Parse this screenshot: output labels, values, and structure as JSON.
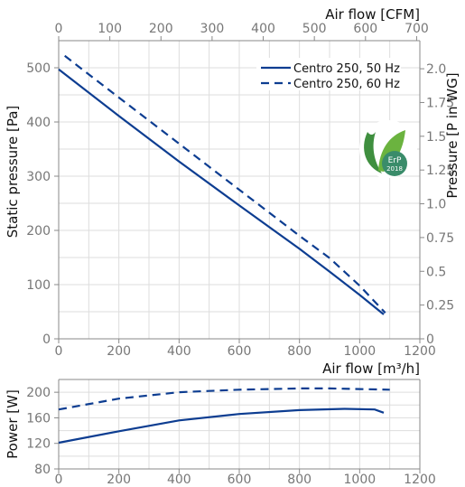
{
  "chart_data": [
    {
      "type": "line",
      "ylabel": "Static pressure [Pa]",
      "ylabel_right": "Pressure [P in WG]",
      "xlabel_top": "Air flow [CFM]",
      "x_ticks": [
        0,
        200,
        400,
        600,
        800,
        1000,
        1200
      ],
      "x_top_ticks": [
        0,
        100,
        200,
        300,
        400,
        500,
        600,
        700
      ],
      "y_ticks": [
        0,
        100,
        200,
        300,
        400,
        500
      ],
      "y_right_ticks": [
        0,
        0.25,
        0.5,
        0.75,
        1.0,
        1.25,
        1.5,
        1.75,
        2.0
      ],
      "y_right_tick_labels": [
        "0",
        "0.25",
        "0.5",
        "0.75",
        "1.0",
        "1.25",
        "1.5",
        "1.75",
        "2.0"
      ],
      "xlim": [
        0,
        1200
      ],
      "ylim": [
        0,
        550
      ],
      "legend_position": "top-right",
      "badge": {
        "line1": "ErP",
        "line2": "2018"
      },
      "series": [
        {
          "name": "Centro 250, 50 Hz",
          "style": "solid",
          "color": "#0d3d91",
          "x": [
            0,
            200,
            400,
            600,
            800,
            900,
            1000,
            1080
          ],
          "y": [
            497,
            411,
            327,
            246,
            166,
            124,
            81,
            45
          ]
        },
        {
          "name": "Centro 250, 60 Hz",
          "style": "dashed",
          "color": "#0d3d91",
          "x": [
            20,
            200,
            400,
            600,
            800,
            900,
            1000,
            1085
          ],
          "y": [
            522,
            445,
            360,
            275,
            190,
            149,
            98,
            48
          ]
        }
      ]
    },
    {
      "type": "line",
      "ylabel": "Power [W]",
      "xlabel": "Air flow [m³/h]",
      "x_ticks": [
        0,
        200,
        400,
        600,
        800,
        1000,
        1200
      ],
      "y_ticks": [
        80,
        120,
        160,
        200
      ],
      "xlim": [
        0,
        1200
      ],
      "ylim": [
        80,
        220
      ],
      "series": [
        {
          "name": "Centro 250, 50 Hz",
          "style": "solid",
          "color": "#0d3d91",
          "x": [
            0,
            200,
            400,
            600,
            800,
            950,
            1050,
            1080
          ],
          "y": [
            121,
            139,
            156,
            166,
            172,
            174,
            173,
            168
          ]
        },
        {
          "name": "Centro 250, 60 Hz",
          "style": "dashed",
          "color": "#0d3d91",
          "x": [
            0,
            200,
            400,
            600,
            800,
            900,
            1000,
            1100
          ],
          "y": [
            173,
            190,
            200,
            204,
            206,
            206,
            205,
            204
          ]
        }
      ]
    }
  ]
}
